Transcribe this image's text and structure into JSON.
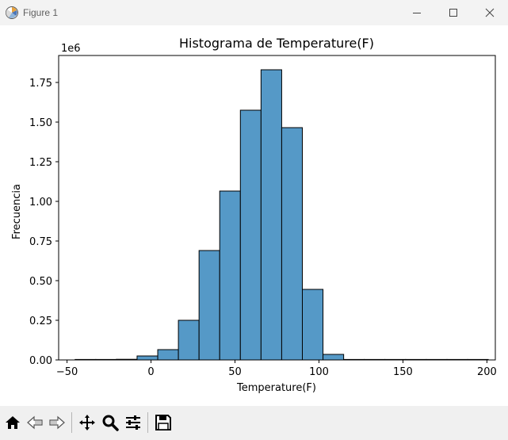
{
  "window": {
    "title": "Figure 1"
  },
  "toolbar": {
    "tools": [
      "home-icon",
      "back-icon",
      "forward-icon",
      "pan-icon",
      "zoom-icon",
      "configure-subplots-icon",
      "save-icon"
    ]
  },
  "chart_data": {
    "type": "bar",
    "title": "Histograma de Temperature(F)",
    "xlabel": "Temperature(F)",
    "ylabel": "Frecuencia",
    "y_offset_label": "1e6",
    "xlim": [
      -55,
      205
    ],
    "ylim": [
      0,
      1.92
    ],
    "y_scale_multiplier": 1000000,
    "x_ticks": [
      -50,
      0,
      50,
      100,
      150,
      200
    ],
    "x_tick_labels": [
      "−50",
      "0",
      "50",
      "100",
      "150",
      "200"
    ],
    "y_ticks": [
      0,
      0.25,
      0.5,
      0.75,
      1.0,
      1.25,
      1.5,
      1.75
    ],
    "y_tick_labels": [
      "0.00",
      "0.25",
      "0.50",
      "0.75",
      "1.00",
      "1.25",
      "1.50",
      "1.75"
    ],
    "bar_color": "#5599c7",
    "edge_color": "#000000",
    "bins": [
      {
        "x0": -45.2,
        "x1": -32.9,
        "value": 0.0008
      },
      {
        "x0": -32.9,
        "x1": -20.6,
        "value": 0.001
      },
      {
        "x0": -20.6,
        "x1": -8.3,
        "value": 0.004
      },
      {
        "x0": -8.3,
        "x1": 4.0,
        "value": 0.025
      },
      {
        "x0": 4.0,
        "x1": 16.3,
        "value": 0.065
      },
      {
        "x0": 16.3,
        "x1": 28.6,
        "value": 0.25
      },
      {
        "x0": 28.6,
        "x1": 40.9,
        "value": 0.69
      },
      {
        "x0": 40.9,
        "x1": 53.2,
        "value": 1.065
      },
      {
        "x0": 53.2,
        "x1": 65.5,
        "value": 1.575
      },
      {
        "x0": 65.5,
        "x1": 77.8,
        "value": 1.83
      },
      {
        "x0": 77.8,
        "x1": 90.1,
        "value": 1.465
      },
      {
        "x0": 90.1,
        "x1": 102.4,
        "value": 0.445
      },
      {
        "x0": 102.4,
        "x1": 114.7,
        "value": 0.035
      },
      {
        "x0": 114.7,
        "x1": 127.0,
        "value": 0.001
      },
      {
        "x0": 127.0,
        "x1": 139.3,
        "value": 0.0005
      },
      {
        "x0": 139.3,
        "x1": 151.6,
        "value": 0.0003
      },
      {
        "x0": 151.6,
        "x1": 163.9,
        "value": 0.0003
      },
      {
        "x0": 163.9,
        "x1": 176.2,
        "value": 0.0002
      },
      {
        "x0": 176.2,
        "x1": 188.5,
        "value": 0.0002
      },
      {
        "x0": 188.5,
        "x1": 200.8,
        "value": 0.0002
      }
    ]
  }
}
